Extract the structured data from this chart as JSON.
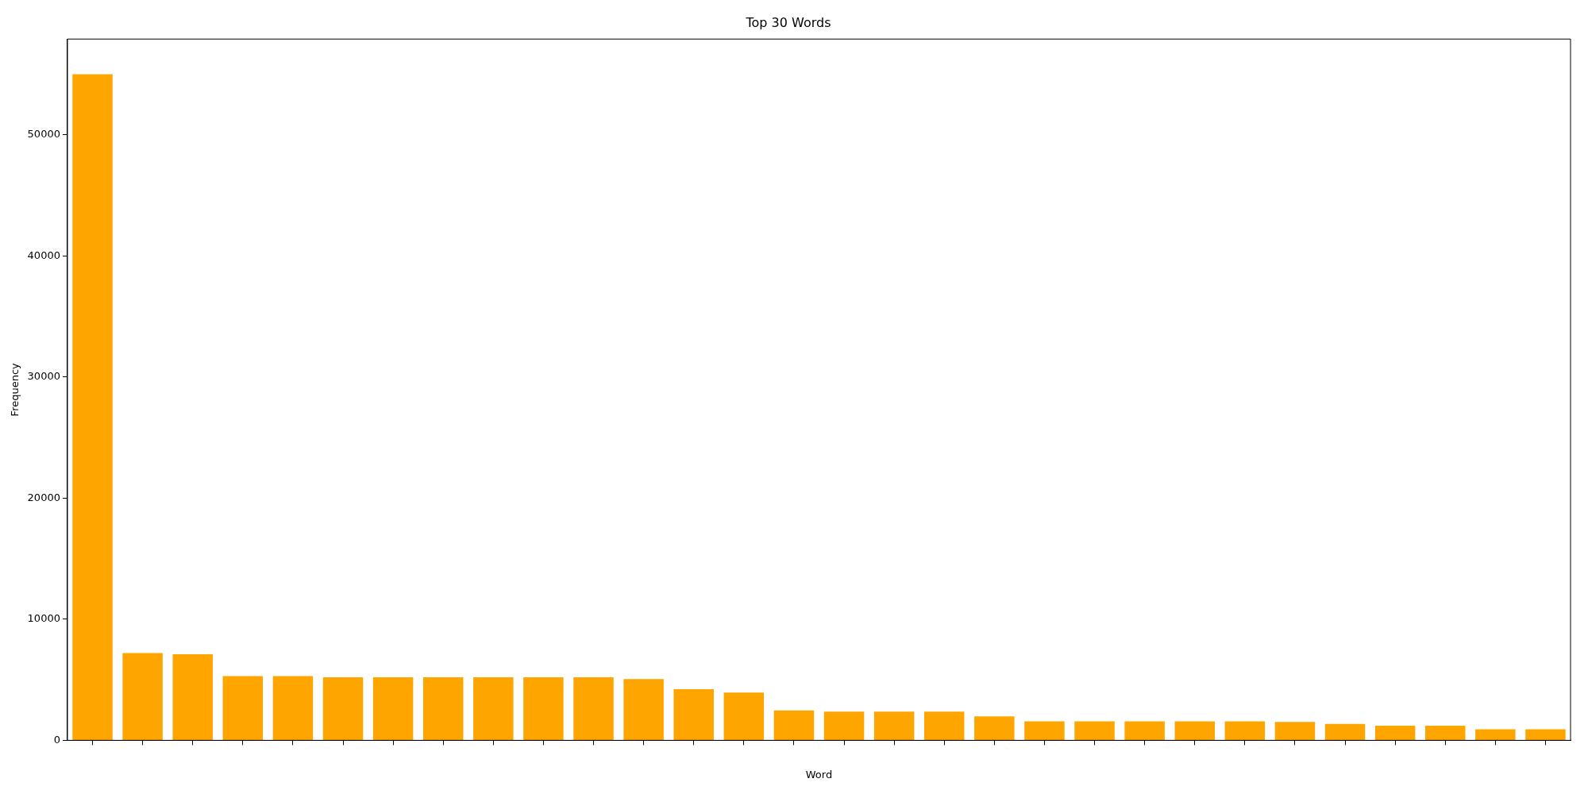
{
  "chart_data": {
    "type": "bar",
    "title": "Top 30 Words",
    "xlabel": "Word",
    "ylabel": "Frequency",
    "categories": [
      null,
      null,
      null,
      null,
      null,
      null,
      null,
      null,
      null,
      null,
      null,
      null,
      null,
      null,
      null,
      null,
      null,
      null,
      null,
      null,
      null,
      null,
      null,
      null,
      null,
      null,
      null,
      null,
      null,
      null
    ],
    "values": [
      55000,
      7200,
      7100,
      5300,
      5300,
      5200,
      5200,
      5200,
      5200,
      5200,
      5200,
      5050,
      4230,
      3940,
      2470,
      2370,
      2370,
      2370,
      1970,
      1570,
      1570,
      1570,
      1570,
      1570,
      1520,
      1360,
      1210,
      1210,
      910,
      910
    ],
    "color": "#ffa500",
    "ylim": [
      0,
      57900
    ],
    "yticks": [
      0,
      10000,
      20000,
      30000,
      40000,
      50000
    ],
    "grid": false,
    "legend": false,
    "tick_labels": "y"
  }
}
